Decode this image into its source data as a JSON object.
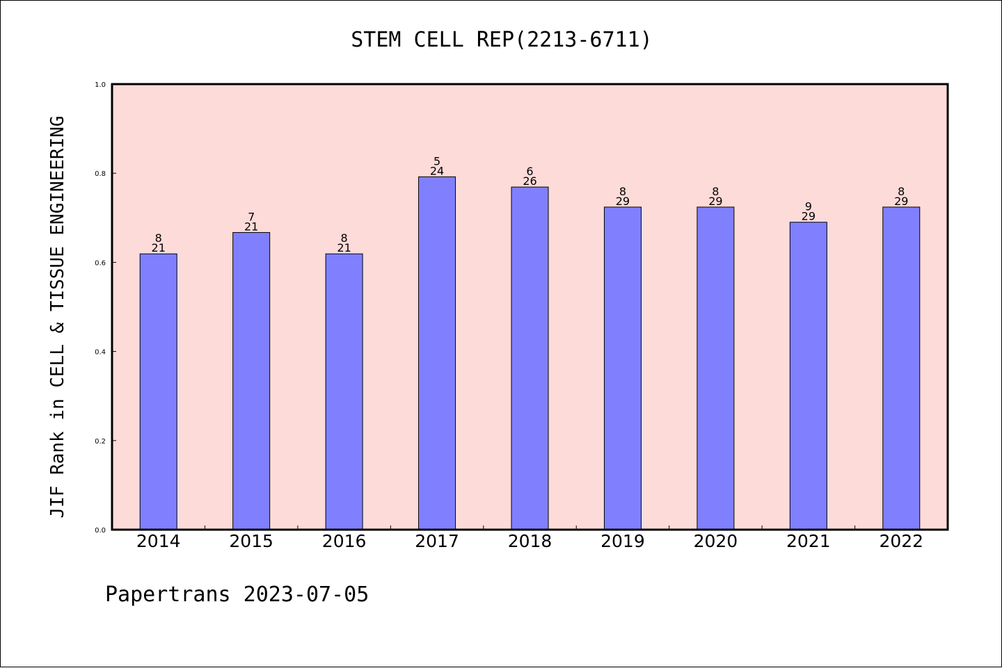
{
  "chart_data": {
    "type": "bar",
    "title": "STEM CELL REP(2213-6711)",
    "xlabel": "",
    "ylabel": "JIF Rank in CELL & TISSUE ENGINEERING",
    "categories": [
      "2014",
      "2015",
      "2016",
      "2017",
      "2018",
      "2019",
      "2020",
      "2021",
      "2022"
    ],
    "values": [
      0.619,
      0.667,
      0.619,
      0.792,
      0.769,
      0.724,
      0.724,
      0.69,
      0.724
    ],
    "ranks": [
      "8",
      "7",
      "8",
      "5",
      "6",
      "8",
      "8",
      "9",
      "8"
    ],
    "totals": [
      "21",
      "21",
      "21",
      "24",
      "26",
      "29",
      "29",
      "29",
      "29"
    ],
    "ylim": [
      0,
      1.0
    ],
    "yticks": [
      "0.0",
      "0.2",
      "0.4",
      "0.6",
      "0.8",
      "1.0"
    ],
    "grid": false,
    "colors": {
      "bar": "#8080ff",
      "plot_background": "#fddbd9",
      "axes": "#000000"
    }
  },
  "footer": "Papertrans 2023-07-05"
}
